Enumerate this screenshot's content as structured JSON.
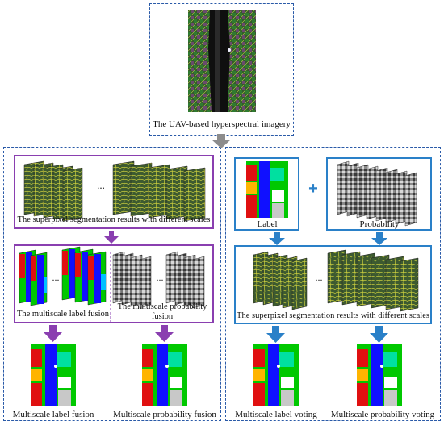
{
  "top": {
    "caption": "The UAV-based hyperspectral imagery"
  },
  "left_panel": {
    "superpixel_caption": "The superpixel segmentation results with different scales",
    "label_fusion_caption": "The multiscale label fusion",
    "prob_fusion_caption": "The multiscale probability fusion",
    "ellipsis": "...",
    "result_left": "Multiscale label fusion",
    "result_right": "Multiscale probability fusion"
  },
  "right_panel": {
    "label_caption": "Label",
    "plus": "+",
    "probability_caption": "Probability",
    "superpixel_caption": "The superpixel segmentation results with different scales",
    "ellipsis": "...",
    "result_left": "Multiscale label voting",
    "result_right": "Multiscale probability voting"
  },
  "colors": {
    "dashed_border": "#2a5aa8",
    "purple": "#8a3fb0",
    "blue": "#2a80c8",
    "gray_arrow": "#8c8c8c"
  }
}
